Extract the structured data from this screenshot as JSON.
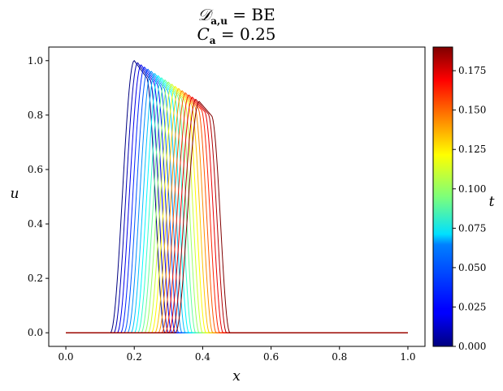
{
  "chart_data": {
    "type": "line",
    "title_line1": "𝒟",
    "title_line1_sub": "a,u",
    "title_line1_rest": " = BE",
    "title_line2_var": "C",
    "title_line2_sub": "a",
    "title_line2_rest": " = 0.25",
    "xlabel": "x",
    "ylabel": "u",
    "colorbar_label": "t",
    "xlim": [
      -0.05,
      1.05
    ],
    "ylim": [
      -0.05,
      1.05
    ],
    "xticks": [
      "0.0",
      "0.2",
      "0.4",
      "0.6",
      "0.8",
      "1.0"
    ],
    "yticks": [
      "0.0",
      "0.2",
      "0.4",
      "0.6",
      "0.8",
      "1.0"
    ],
    "colorbar_ticks": [
      "0.000",
      "0.025",
      "0.050",
      "0.075",
      "0.100",
      "0.125",
      "0.150",
      "0.175"
    ],
    "colormap": "jet",
    "t_range": [
      0.0,
      0.19
    ],
    "series_description": "pulse profiles u(x) at successive times t, colored by t",
    "pulse": {
      "x_domain": [
        0.0,
        1.0
      ],
      "t_values": [
        0.0,
        0.01,
        0.02,
        0.03,
        0.04,
        0.05,
        0.06,
        0.07,
        0.08,
        0.09,
        0.1,
        0.11,
        0.12,
        0.13,
        0.14,
        0.15,
        0.16,
        0.17,
        0.18,
        0.19
      ],
      "peak_x_start": 0.2,
      "peak_x_end": 0.39,
      "peak_u_start": 1.0,
      "peak_u_end": 0.85,
      "rise_width": 0.07,
      "plateau_width": 0.035,
      "fall_width": 0.055
    }
  }
}
